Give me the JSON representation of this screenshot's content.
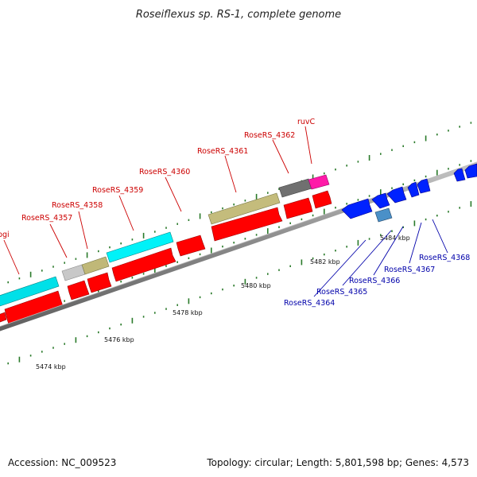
{
  "title": "Roseiflexus sp. RS-1, complete genome",
  "footer": {
    "accession": "Accession: NC_009523",
    "summary": "Topology: circular; Length: 5,801,598 bp; Genes: 4,573"
  },
  "colors": {
    "forward_label": "#cc0000",
    "reverse_label": "#0000aa",
    "cds_forward": "#ff0000",
    "cds_reverse": "#0000ff",
    "backbone": "#888888",
    "tick": "#2a7a2a"
  },
  "scale_labels": [
    "5474 kbp",
    "5476 kbp",
    "5478 kbp",
    "5480 kbp",
    "5482 kbp",
    "5484 kbp"
  ],
  "forward_genes": [
    {
      "label": "pgi"
    },
    {
      "label": "RoseRS_4357"
    },
    {
      "label": "RoseRS_4358"
    },
    {
      "label": "RoseRS_4359"
    },
    {
      "label": "RoseRS_4360"
    },
    {
      "label": "RoseRS_4361"
    },
    {
      "label": "RoseRS_4362"
    },
    {
      "label": "ruvC"
    }
  ],
  "reverse_genes": [
    {
      "label": "RoseRS_4364"
    },
    {
      "label": "RoseRS_4365"
    },
    {
      "label": "RoseRS_4366"
    },
    {
      "label": "RoseRS_4367"
    },
    {
      "label": "RoseRS_4368"
    }
  ]
}
